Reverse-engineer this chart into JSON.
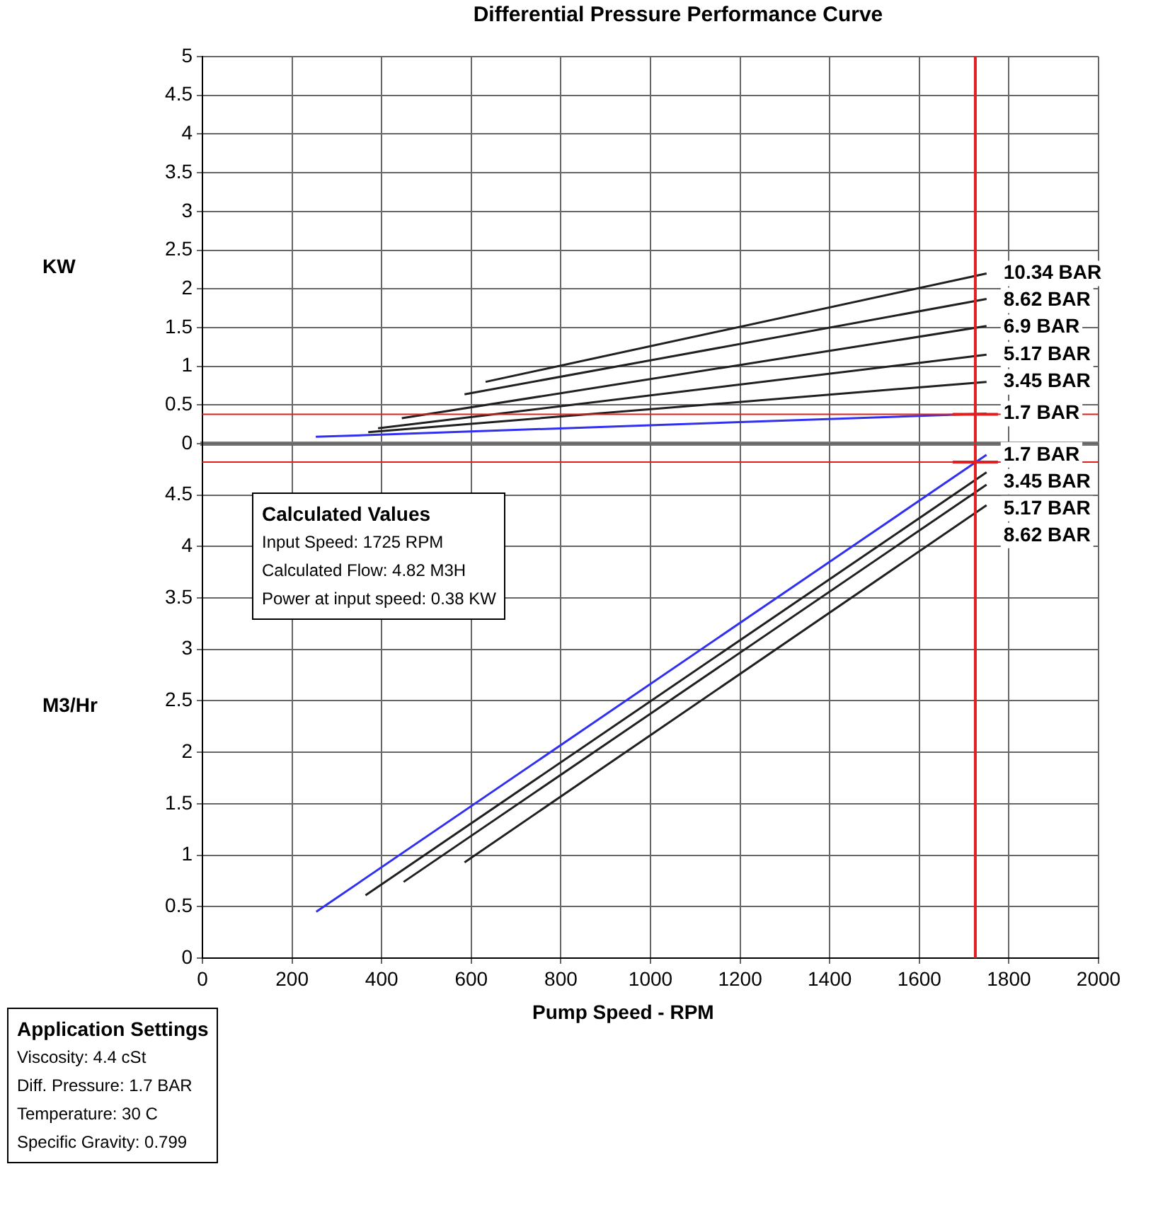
{
  "chart_data": [
    {
      "type": "line",
      "title": "Differential Pressure Performance Curve",
      "ylabel": "KW",
      "xlim": [
        0,
        2000
      ],
      "xticks": [
        0,
        200,
        400,
        600,
        800,
        1000,
        1200,
        1400,
        1600,
        1800,
        2000
      ],
      "ylim": [
        0,
        5
      ],
      "yticks": [
        0,
        0.5,
        1,
        1.5,
        2,
        2.5,
        3,
        3.5,
        4,
        4.5,
        5
      ],
      "tick_labels": "y",
      "grid": true,
      "marker": "none",
      "series": [
        {
          "name": "10.34 BAR",
          "color": "#202020",
          "x": [
            632,
            1750
          ],
          "values": [
            0.8,
            2.2
          ]
        },
        {
          "name": "8.62 BAR",
          "color": "#202020",
          "x": [
            585,
            1750
          ],
          "values": [
            0.64,
            1.87
          ]
        },
        {
          "name": "6.9 BAR",
          "color": "#202020",
          "x": [
            445,
            1750
          ],
          "values": [
            0.33,
            1.52
          ]
        },
        {
          "name": "5.17 BAR",
          "color": "#202020",
          "x": [
            392,
            1750
          ],
          "values": [
            0.2,
            1.15
          ]
        },
        {
          "name": "3.45 BAR",
          "color": "#202020",
          "x": [
            370,
            1750
          ],
          "values": [
            0.15,
            0.8
          ]
        },
        {
          "name": "1.7 BAR",
          "color": "#3030f0",
          "x": [
            253,
            1750
          ],
          "values": [
            0.09,
            0.39
          ]
        }
      ],
      "ref_lines": [
        {
          "axis": "x",
          "value": 1725,
          "color": "#e02020"
        },
        {
          "axis": "y",
          "value": 0.38,
          "color": "#e02020"
        }
      ],
      "annotations": [
        "Application Settings",
        "Viscosity: 4.4 cSt",
        "Diff. Pressure: 1.7 BAR",
        "Temperature: 30 C",
        "Specific Gravity: 0.799"
      ]
    },
    {
      "type": "line",
      "ylabel": "M3/Hr",
      "xlabel": "Pump Speed - RPM",
      "xlim": [
        0,
        2000
      ],
      "xticks": [
        0,
        200,
        400,
        600,
        800,
        1000,
        1200,
        1400,
        1600,
        1800,
        2000
      ],
      "ylim": [
        0,
        5
      ],
      "yticks": [
        0,
        0.5,
        1,
        1.5,
        2,
        2.5,
        3,
        3.5,
        4,
        4.5,
        {
          "value": 5,
          "label": null
        }
      ],
      "grid": true,
      "marker": "none",
      "series": [
        {
          "name": "1.7 BAR",
          "color": "#3030f0",
          "x": [
            254,
            1750
          ],
          "values": [
            0.45,
            4.89
          ]
        },
        {
          "name": "3.45 BAR",
          "color": "#202020",
          "x": [
            364,
            1750
          ],
          "values": [
            0.61,
            4.72
          ]
        },
        {
          "name": "5.17 BAR",
          "color": "#202020",
          "x": [
            449,
            1750
          ],
          "values": [
            0.74,
            4.6
          ]
        },
        {
          "name": "8.62 BAR",
          "color": "#202020",
          "x": [
            585,
            1750
          ],
          "values": [
            0.93,
            4.4
          ]
        }
      ],
      "ref_lines": [
        {
          "axis": "x",
          "value": 1725,
          "color": "#e02020"
        },
        {
          "axis": "y",
          "value": 4.82,
          "color": "#e02020"
        }
      ],
      "annotations": [
        "Calculated Values",
        "Input Speed: 1725 RPM",
        "Calculated Flow: 4.82 M3H",
        "Power at input speed: 0.38 KW"
      ]
    }
  ]
}
